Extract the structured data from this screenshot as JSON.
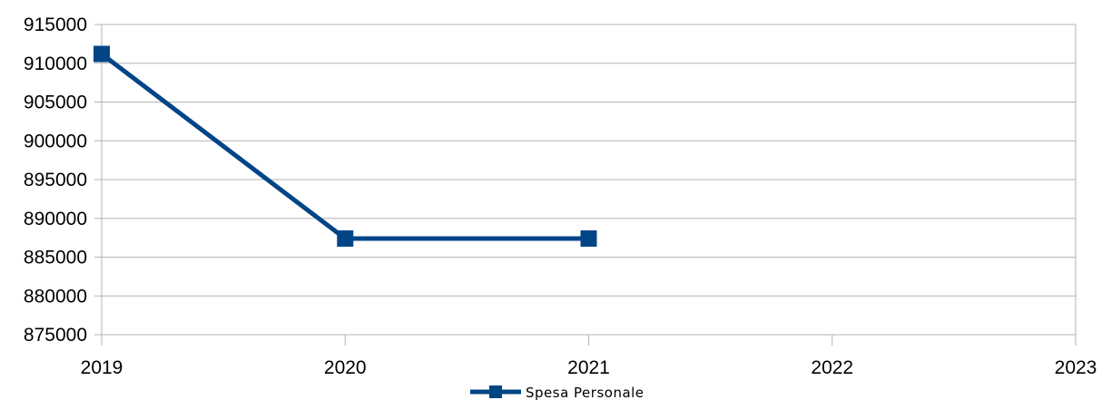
{
  "chart_data": {
    "type": "line",
    "x": [
      2019,
      2020,
      2021,
      2022,
      2023
    ],
    "x_tick_labels": [
      "2019",
      "2020",
      "2021",
      "2022",
      "2023"
    ],
    "y_tick_labels": [
      "875000",
      "880000",
      "885000",
      "890000",
      "895000",
      "900000",
      "905000",
      "910000",
      "915000"
    ],
    "ylim": [
      875000,
      915000
    ],
    "xlim": [
      2019,
      2023
    ],
    "grid": "horizontal",
    "legend_position": "bottom",
    "series": [
      {
        "name": "Spesa Personale",
        "color": "#004586",
        "marker": "square",
        "points": [
          {
            "x": 2019,
            "y": 911200
          },
          {
            "x": 2020,
            "y": 887400
          },
          {
            "x": 2021,
            "y": 887400
          }
        ]
      }
    ]
  }
}
